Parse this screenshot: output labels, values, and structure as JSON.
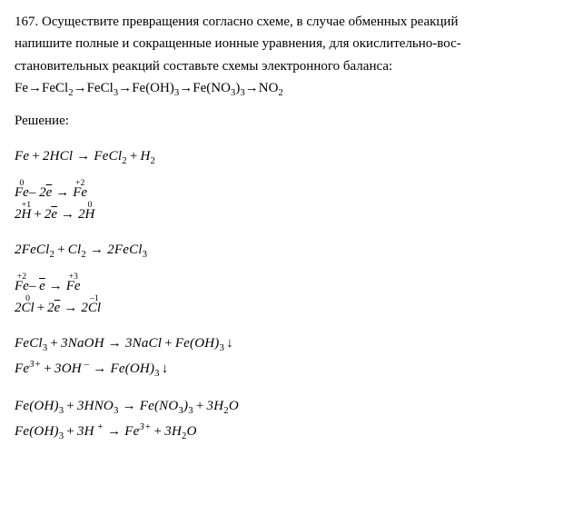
{
  "problem": {
    "number": "167.",
    "text_line1": "Осуществите превращения согласно схеме, в случае обменных реакций",
    "text_line2": "напишите полные и сокращенные ионные уравнения, для окислительно-вос-",
    "text_line3": "становительных реакций составьте схемы электронного баланса:",
    "scheme": "Fe→FeCl₂→FeCl₃→Fe(OH)₃→Fe(NO₃)₃→NO₂"
  },
  "solution_label": "Решение:",
  "eq1": {
    "main": "Fe + 2HCl → FeCl₂ + H₂",
    "balance1": {
      "left_over": "0",
      "left": "Fe",
      "mid": "– 2e̅ →",
      "right_over": "+2",
      "right": "Fe"
    },
    "balance2": {
      "left_coef": "2",
      "left_over": "+1",
      "left": "H",
      "mid": "+ 2e̅ →",
      "right_coef": "2",
      "right_over": "0",
      "right": "H"
    }
  },
  "eq2": {
    "main": "2FeCl₂ + Cl₂ → 2FeCl₃",
    "balance1": {
      "left_over": "+2",
      "left": "Fe",
      "mid": "– e̅ →",
      "right_over": "+3",
      "right": "Fe"
    },
    "balance2": {
      "left_coef": "2",
      "left_over": "0",
      "left": "Cl",
      "mid": "+ 2e̅ →",
      "right_coef": "2",
      "right_over": "–1",
      "right": "Cl"
    }
  },
  "eq3": {
    "main": "FeCl₃ + 3NaOH → 3NaCl + Fe(OH)₃ ↓",
    "ionic": "Fe³⁺ + 3OH⁻ → Fe(OH)₃ ↓"
  },
  "eq4": {
    "main": "Fe(OH)₃ + 3HNO₃ → Fe(NO₃)₃ + 3H₂O",
    "ionic": "Fe(OH)₃ + 3H⁺ → Fe³⁺ + 3H₂O"
  },
  "colors": {
    "text": "#000000",
    "bg": "#ffffff"
  },
  "fonts": {
    "family": "Times New Roman",
    "size_body": 15,
    "size_sub": 11
  }
}
